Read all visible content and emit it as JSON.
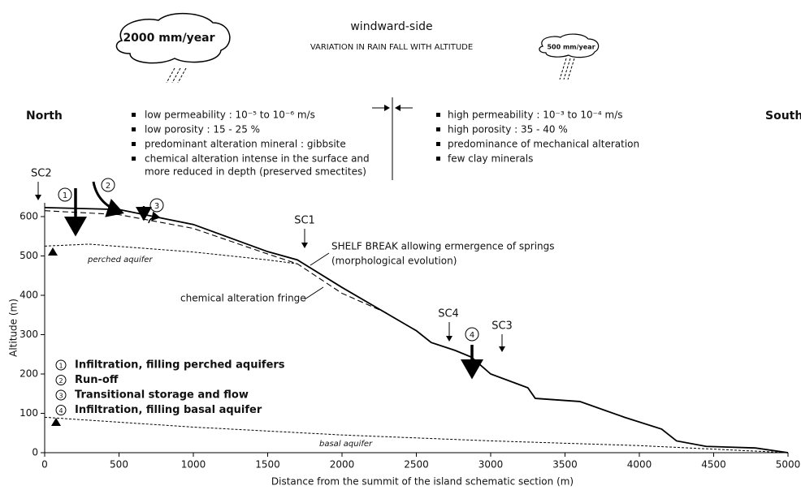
{
  "header": {
    "title": "windward-side",
    "subtitle": "VARIATION IN RAIN FALL WITH ALTITUDE",
    "rain_high": "2000 mm/year",
    "rain_low": "500 mm/year",
    "north": "North",
    "south": "South"
  },
  "north_props": [
    "low permeability : 10⁻⁵ to 10⁻⁶ m/s",
    "low porosity : 15 - 25 %",
    "predominant alteration mineral : gibbsite",
    "chemical alteration intense in the surface and",
    "more reduced in depth (preserved smectites)"
  ],
  "south_props": [
    "high permeability : 10⁻³ to 10⁻⁴ m/s",
    "high porosity : 35 - 40 %",
    "predominance of mechanical alteration",
    "few clay minerals"
  ],
  "chart_data": {
    "type": "line",
    "xlabel": "Distance from the summit of the island schematic section (m)",
    "ylabel": "Altitude (m)",
    "xlim": [
      0,
      5000
    ],
    "ylim": [
      0,
      640
    ],
    "xticks": [
      0,
      500,
      1000,
      1500,
      2000,
      2500,
      3000,
      3500,
      4000,
      4500,
      5000
    ],
    "yticks": [
      0,
      100,
      200,
      300,
      400,
      500,
      600
    ],
    "series": [
      {
        "color": "#000000",
        "style": "solid",
        "x": [
          0,
          500,
          1000,
          1500,
          1700,
          2000,
          2250,
          2500,
          2600,
          2760,
          2870,
          3000,
          3250,
          3300,
          3600,
          3900,
          4150,
          4250,
          4450,
          4780,
          5000
        ],
        "values": [
          623,
          618,
          580,
          511,
          490,
          420,
          365,
          310,
          280,
          260,
          243,
          200,
          165,
          138,
          130,
          90,
          60,
          30,
          16,
          12,
          0
        ]
      },
      {
        "name": "chemical alteration fringe",
        "color": "#000000",
        "style": "dashed",
        "x": [
          0,
          500,
          1000,
          1500,
          1700,
          2000,
          2300
        ],
        "values": [
          615,
          605,
          570,
          505,
          480,
          405,
          355
        ]
      },
      {
        "name": "perched aquifer",
        "color": "#000000",
        "style": "dotted",
        "x": [
          0,
          300,
          1000,
          1500,
          1700
        ],
        "values": [
          525,
          530,
          510,
          490,
          480
        ]
      },
      {
        "name": "basal aquifer",
        "color": "#000000",
        "style": "dotted",
        "x": [
          0,
          1000,
          2000,
          3000,
          4000,
          5000
        ],
        "values": [
          90,
          65,
          45,
          30,
          18,
          0
        ]
      }
    ],
    "annotations": {
      "sc2": "SC2",
      "sc1": "SC1",
      "sc4": "SC4",
      "sc3": "SC3",
      "m1": "1",
      "m2": "2",
      "m3": "3",
      "m4": "4",
      "shelf_break": "SHELF BREAK allowing ermergence of springs",
      "shelf_break_note": "(morphological evolution)"
    },
    "legend": [
      {
        "marker": "1",
        "text": "Infiltration, filling perched aquifers"
      },
      {
        "marker": "2",
        "text": "Run-off"
      },
      {
        "marker": "3",
        "text": "Transitional storage and flow"
      },
      {
        "marker": "4",
        "text": "Infiltration, filling basal aquifer"
      }
    ]
  }
}
